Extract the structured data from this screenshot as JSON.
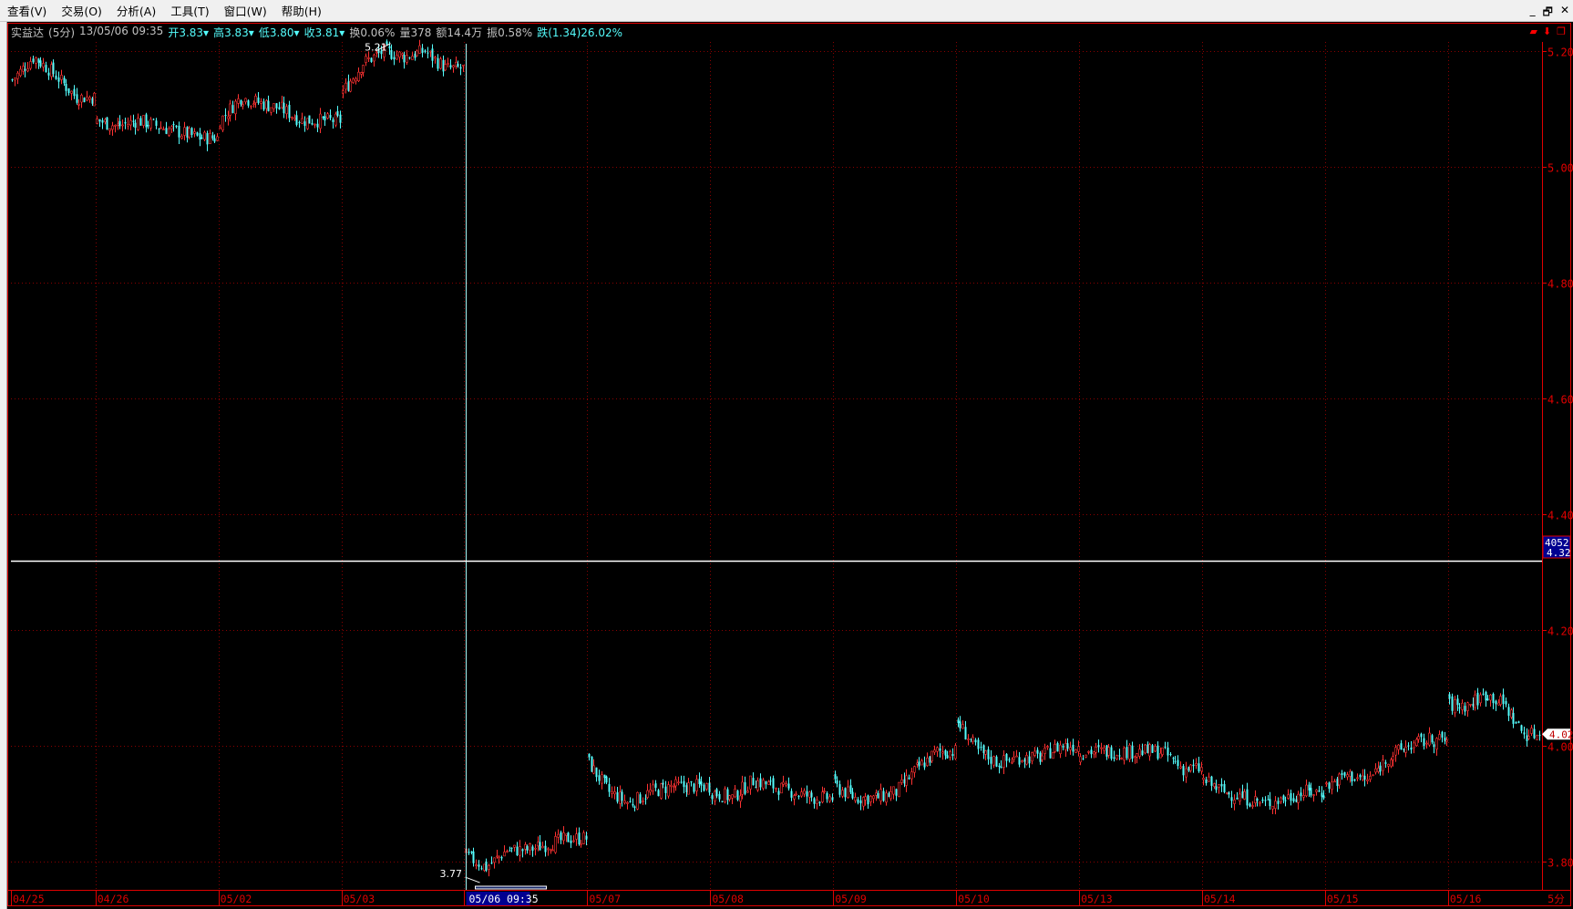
{
  "menu": [
    "查看(V)",
    "交易(O)",
    "分析(A)",
    "工具(T)",
    "窗口(W)",
    "帮助(H)"
  ],
  "window_controls": [
    "_",
    "🗗",
    "✕"
  ],
  "info": {
    "name": "实益达",
    "period": "(5分)",
    "datetime": "13/05/06 09:35",
    "open": "开3.83▾",
    "high": "高3.83▾",
    "low": "低3.80▾",
    "close": "收3.81▾",
    "turnover": "换0.06%",
    "volume": "量378",
    "amount": "额14.4万",
    "amplitude": "振0.58%",
    "change": "跌(1.34)26.02%"
  },
  "colors": {
    "up": "#ff3232",
    "down": "#54fcfc",
    "grid": "#8a0000",
    "axis": "#e00000",
    "crosshair": "#ffffff",
    "label_bg": "#000090"
  },
  "crosshair": {
    "date_label": "05/06 09:35",
    "volume_label": "4052",
    "price_label": "4.32",
    "price": 4.32
  },
  "last_price_label": "4.02",
  "period_label": "5分",
  "chart_data": {
    "type": "candlestick",
    "y_ticks": [
      "5.20",
      "5.00",
      "4.80",
      "4.60",
      "4.40",
      "4.20",
      "4.00",
      "3.80"
    ],
    "ylim": [
      3.76,
      5.22
    ],
    "annotations": [
      {
        "text": "5.21",
        "price": 5.21,
        "day": "05/03"
      },
      {
        "text": "3.77",
        "price": 3.77,
        "day": "05/06"
      }
    ],
    "days": [
      {
        "date": "04/25",
        "bars": 33,
        "closes": [
          5.15,
          5.19,
          5.16,
          5.12
        ]
      },
      {
        "date": "04/26",
        "bars": 48,
        "closes": [
          5.08,
          5.07,
          5.08,
          5.07,
          5.06,
          5.05
        ]
      },
      {
        "date": "05/02",
        "bars": 48,
        "closes": [
          5.08,
          5.12,
          5.11,
          5.1,
          5.08,
          5.08
        ]
      },
      {
        "date": "05/03",
        "bars": 48,
        "closes": [
          5.13,
          5.18,
          5.2,
          5.19,
          5.2,
          5.17
        ]
      },
      {
        "date": "05/06",
        "bars": 48,
        "closes": [
          3.81,
          3.79,
          3.82,
          3.82,
          3.83,
          3.84
        ]
      },
      {
        "date": "05/07",
        "bars": 48,
        "closes": [
          3.97,
          3.92,
          3.9,
          3.92,
          3.93,
          3.93
        ]
      },
      {
        "date": "05/08",
        "bars": 48,
        "closes": [
          3.92,
          3.91,
          3.94,
          3.93,
          3.92,
          3.91
        ]
      },
      {
        "date": "05/09",
        "bars": 48,
        "closes": [
          3.93,
          3.91,
          3.91,
          3.92,
          3.96,
          3.99
        ]
      },
      {
        "date": "05/10",
        "bars": 48,
        "closes": [
          4.04,
          3.99,
          3.97,
          3.98,
          3.98,
          4.0
        ]
      },
      {
        "date": "05/13",
        "bars": 48,
        "closes": [
          3.99,
          3.99,
          3.99,
          3.99,
          3.99,
          3.96
        ]
      },
      {
        "date": "05/14",
        "bars": 48,
        "closes": [
          3.94,
          3.92,
          3.91,
          3.9,
          3.91,
          3.92
        ]
      },
      {
        "date": "05/15",
        "bars": 48,
        "closes": [
          3.93,
          3.95,
          3.94,
          3.98,
          4.0,
          4.01
        ]
      },
      {
        "date": "05/16",
        "bars": 36,
        "closes": [
          4.07,
          4.07,
          4.09,
          4.07,
          4.02
        ]
      }
    ]
  }
}
